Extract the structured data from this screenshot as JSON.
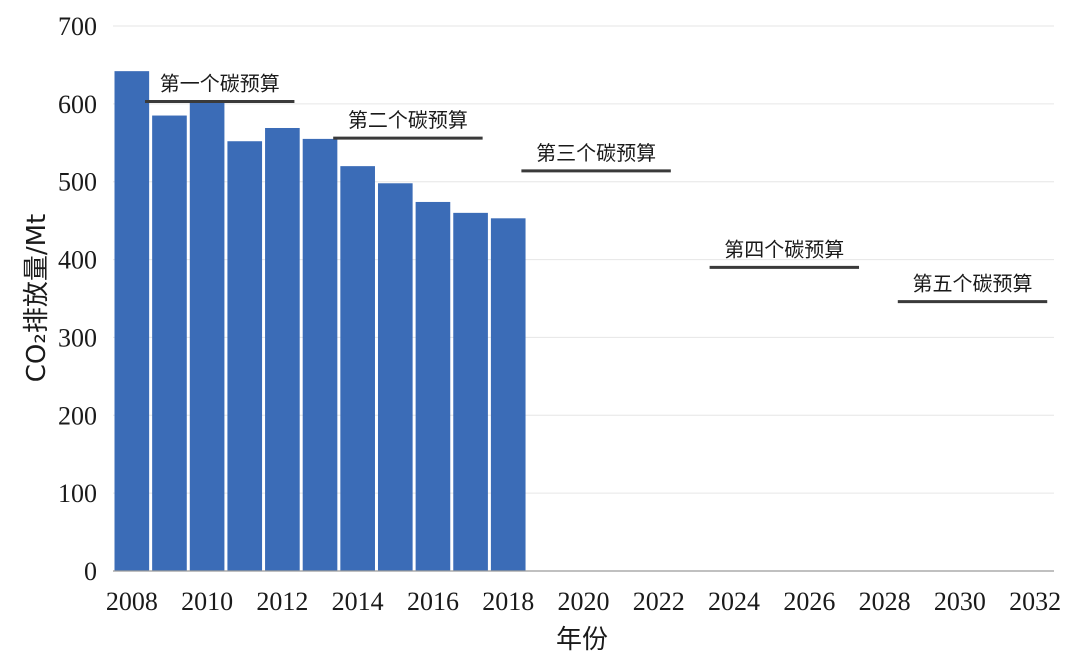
{
  "chart_data": {
    "type": "bar",
    "ylabel": "CO₂排放量/Mt",
    "xlabel": "年份",
    "ylim": [
      0,
      700
    ],
    "yticks": [
      0,
      100,
      200,
      300,
      400,
      500,
      600,
      700
    ],
    "xlim": [
      2008,
      2032
    ],
    "xticks": [
      2008,
      2010,
      2012,
      2014,
      2016,
      2018,
      2020,
      2022,
      2024,
      2026,
      2028,
      2030,
      2032
    ],
    "grid": true,
    "bar_color": "#3b6cb7",
    "series": [
      {
        "x": [
          2008,
          2009,
          2010,
          2011,
          2012,
          2013,
          2014,
          2015,
          2016,
          2017,
          2018
        ],
        "values": [
          642,
          585,
          603,
          552,
          569,
          555,
          520,
          498,
          474,
          460,
          453
        ]
      }
    ],
    "carbon_budgets": [
      {
        "label": "第一个碳预算",
        "start": 2008,
        "end": 2012,
        "value": 603
      },
      {
        "label": "第二个碳预算",
        "start": 2013,
        "end": 2017,
        "value": 556
      },
      {
        "label": "第三个碳预算",
        "start": 2018,
        "end": 2022,
        "value": 514
      },
      {
        "label": "第四个碳预算",
        "start": 2023,
        "end": 2027,
        "value": 390
      },
      {
        "label": "第五个碳预算",
        "start": 2028,
        "end": 2032,
        "value": 346
      }
    ]
  }
}
